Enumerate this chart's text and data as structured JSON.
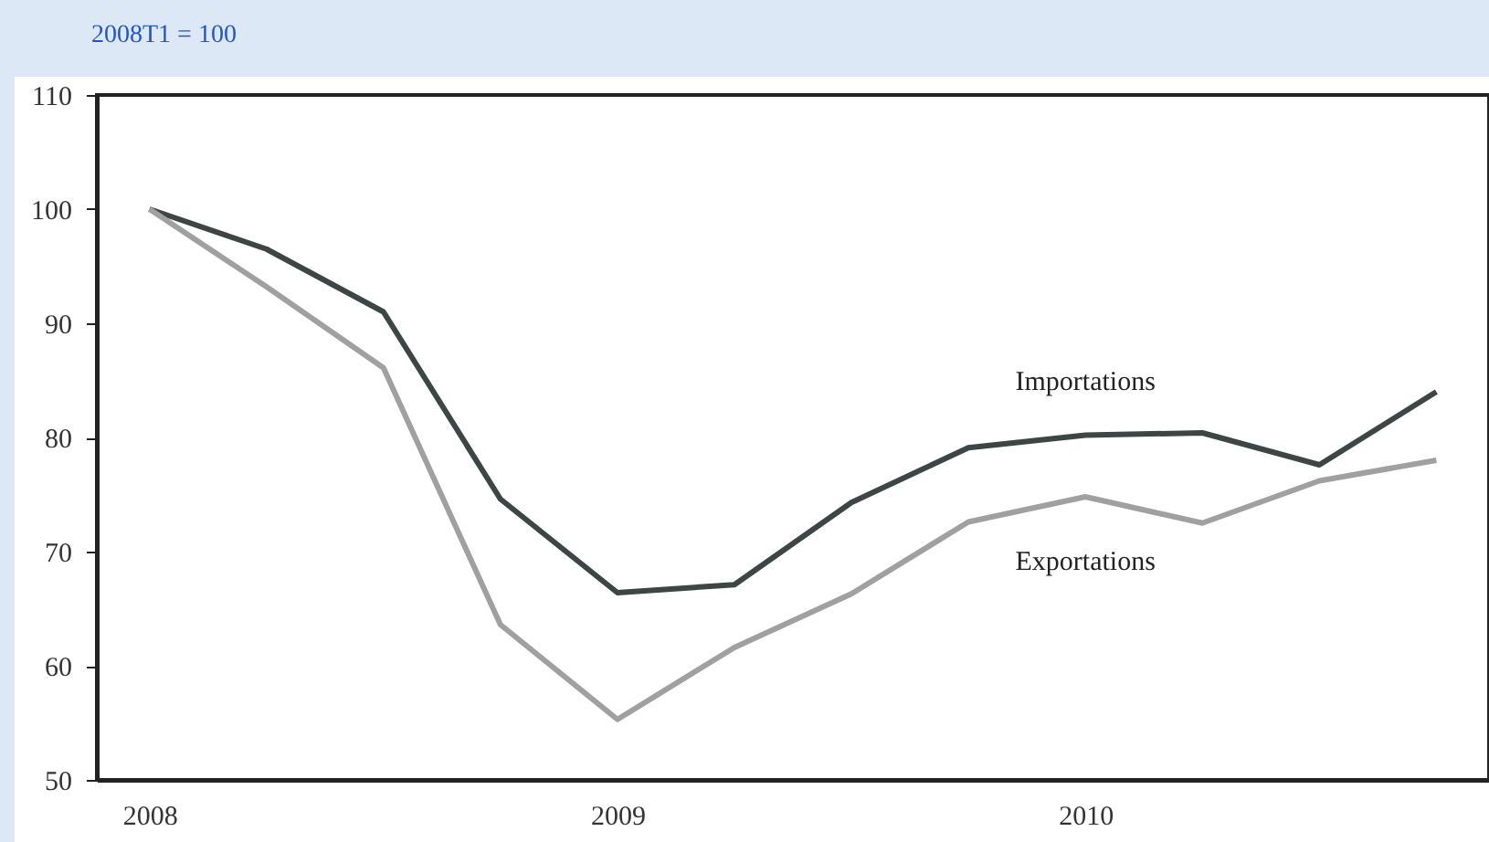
{
  "chart_data": {
    "type": "line",
    "subtitle": "2008T1 = 100",
    "categories": [
      "2008",
      null,
      null,
      null,
      "2009",
      null,
      null,
      null,
      "2010",
      null,
      null,
      null
    ],
    "series": [
      {
        "name": "Importations",
        "color": "#3d4545",
        "values": [
          100,
          96.5,
          91,
          74.6,
          66.4,
          67.1,
          74.3,
          79.1,
          80.2,
          80.4,
          77.6,
          84.0
        ]
      },
      {
        "name": "Exportations",
        "color": "#a0a0a0",
        "values": [
          100,
          93.2,
          86.1,
          63.6,
          55.3,
          61.6,
          66.3,
          72.6,
          74.8,
          72.5,
          76.2,
          78.0
        ]
      }
    ],
    "ylim": [
      50,
      110
    ],
    "yticks": [
      50,
      60,
      70,
      80,
      90,
      100,
      110
    ],
    "grid": false,
    "marker": "none",
    "line_style": "solid"
  }
}
